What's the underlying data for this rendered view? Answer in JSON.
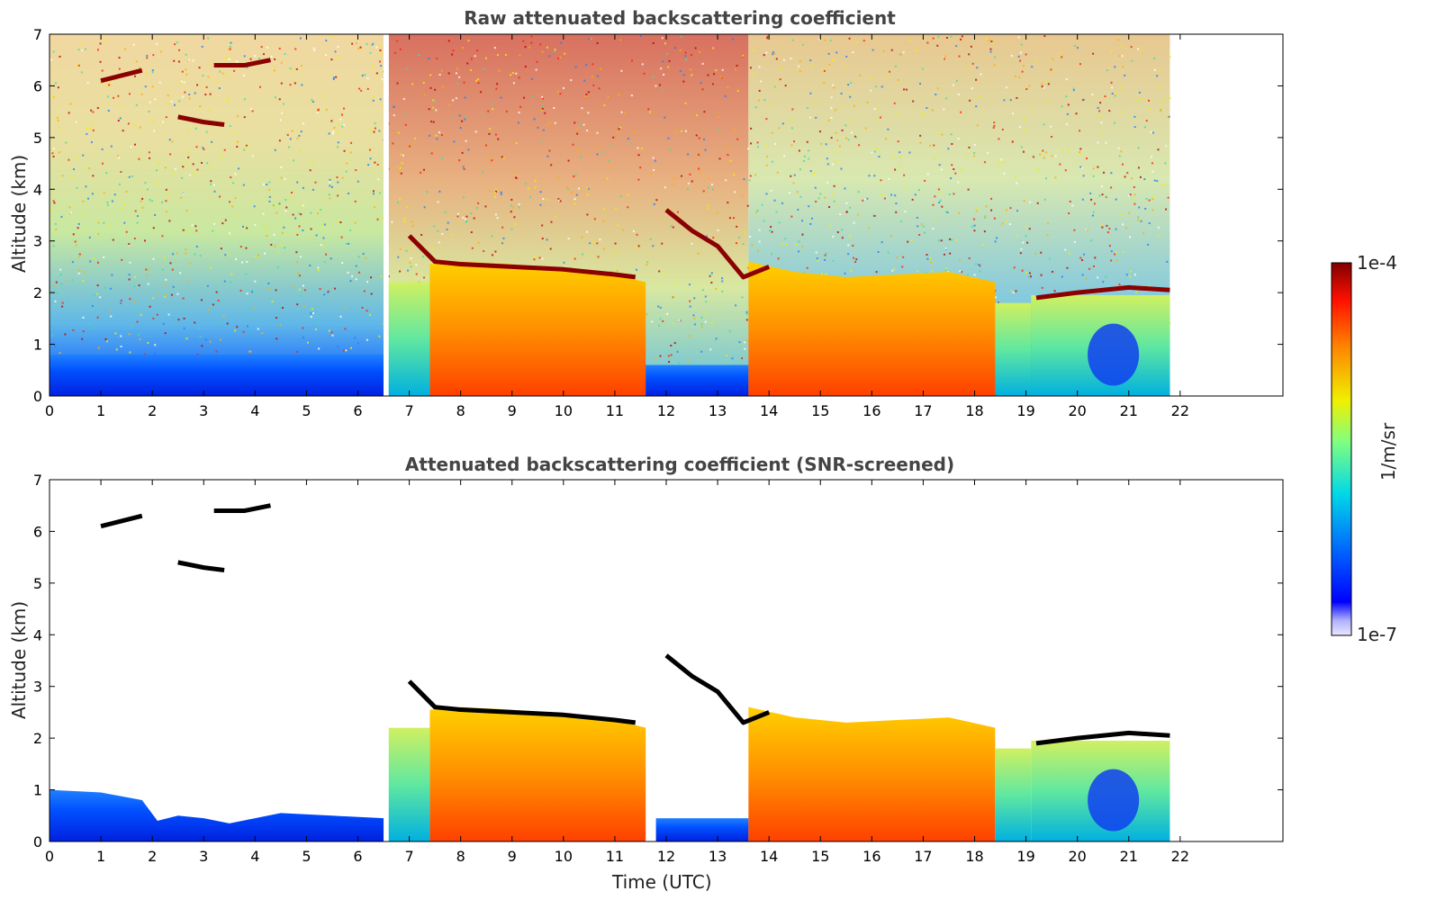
{
  "colors": {
    "axes": "#000000",
    "title": "#444444"
  },
  "chart_data": [
    {
      "type": "heatmap",
      "title": "Raw attenuated backscattering coefficient",
      "xlabel": "",
      "ylabel": "Altitude (km)",
      "xlim": [
        0,
        24
      ],
      "ylim": [
        0,
        7
      ],
      "x_ticks": [
        "0",
        "1",
        "2",
        "3",
        "4",
        "5",
        "6",
        "7",
        "8",
        "9",
        "10",
        "11",
        "12",
        "13",
        "14",
        "15",
        "16",
        "17",
        "18",
        "19",
        "20",
        "21",
        "22"
      ],
      "y_ticks": [
        "0",
        "1",
        "2",
        "3",
        "4",
        "5",
        "6",
        "7"
      ],
      "data_extent_hours": [
        0,
        21.8
      ],
      "colormap": "jet",
      "features": [
        {
          "name": "low-level-layer",
          "t": [
            0,
            6.5
          ],
          "alt": [
            0,
            0.9
          ]
        },
        {
          "name": "gap",
          "t": [
            6.5,
            6.6
          ]
        },
        {
          "name": "boundary-layer-top",
          "points": [
            [
              7.0,
              3.1
            ],
            [
              7.5,
              2.6
            ],
            [
              8.0,
              2.55
            ],
            [
              9.0,
              2.5
            ],
            [
              10.0,
              2.45
            ],
            [
              11.0,
              2.35
            ],
            [
              11.4,
              2.3
            ]
          ]
        },
        {
          "name": "cloud-top",
          "points": [
            [
              12.0,
              3.6
            ],
            [
              12.5,
              3.2
            ],
            [
              13.0,
              2.9
            ],
            [
              13.5,
              2.3
            ],
            [
              14.0,
              2.5
            ]
          ]
        },
        {
          "name": "cloud-base",
          "points": [
            [
              19.2,
              1.9
            ],
            [
              20.0,
              2.0
            ],
            [
              21.0,
              2.1
            ],
            [
              21.8,
              2.05
            ]
          ]
        },
        {
          "name": "cirrus-6km",
          "t": [
            1.0,
            4.5
          ],
          "alt": [
            5.2,
            6.8
          ]
        }
      ]
    },
    {
      "type": "heatmap",
      "title": "Attenuated backscattering coefficient (SNR-screened)",
      "xlabel": "Time (UTC)",
      "ylabel": "Altitude (km)",
      "xlim": [
        0,
        24
      ],
      "ylim": [
        0,
        7
      ],
      "x_ticks": [
        "0",
        "1",
        "2",
        "3",
        "4",
        "5",
        "6",
        "7",
        "8",
        "9",
        "10",
        "11",
        "12",
        "13",
        "14",
        "15",
        "16",
        "17",
        "18",
        "19",
        "20",
        "21",
        "22"
      ],
      "y_ticks": [
        "0",
        "1",
        "2",
        "3",
        "4",
        "5",
        "6",
        "7"
      ],
      "data_extent_hours": [
        0,
        21.8
      ],
      "colormap": "jet",
      "screened": true
    }
  ],
  "colorbar": {
    "label": "1/m/sr",
    "max_label": "1e-4",
    "min_label": "1e-7",
    "scale": "log",
    "range": [
      1e-07,
      0.0001
    ]
  }
}
